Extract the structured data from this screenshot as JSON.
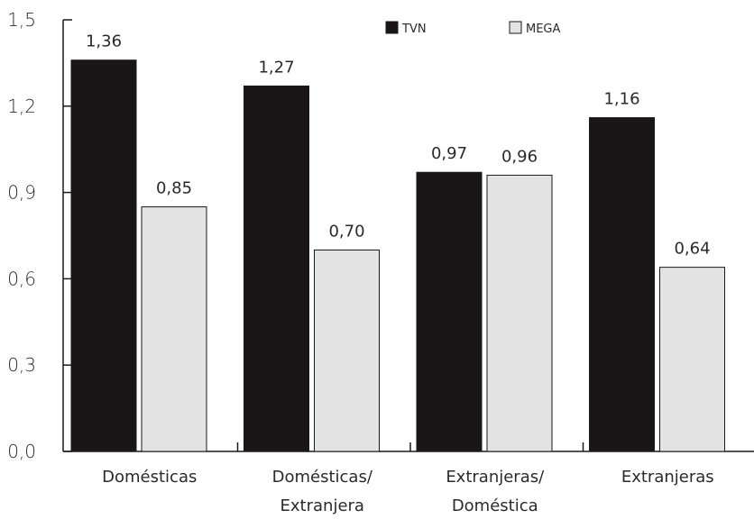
{
  "chart_data": {
    "type": "bar",
    "categories": [
      [
        "Domésticas"
      ],
      [
        "Domésticas/",
        "Extranjera"
      ],
      [
        "Extranjeras/",
        "Doméstica"
      ],
      [
        "Extranjeras"
      ]
    ],
    "series": [
      {
        "name": "TVN",
        "color": "#1a1617",
        "values": [
          1.36,
          1.27,
          0.97,
          1.16
        ],
        "labels": [
          "1,36",
          "1,27",
          "0,97",
          "1,16"
        ]
      },
      {
        "name": "MEGA",
        "color": "#e3e3e3",
        "values": [
          0.85,
          0.7,
          0.96,
          0.64
        ],
        "labels": [
          "0,85",
          "0,70",
          "0,96",
          "0,64"
        ]
      }
    ],
    "yticks": [
      0,
      0.3,
      0.6,
      0.9,
      1.2,
      1.5
    ],
    "ytick_labels": [
      "0,0",
      "0,3",
      "0,6",
      "0,9",
      "1,2",
      "1,5"
    ],
    "ylim": [
      0,
      1.5
    ],
    "legend_position": "top-center",
    "grid": false
  }
}
